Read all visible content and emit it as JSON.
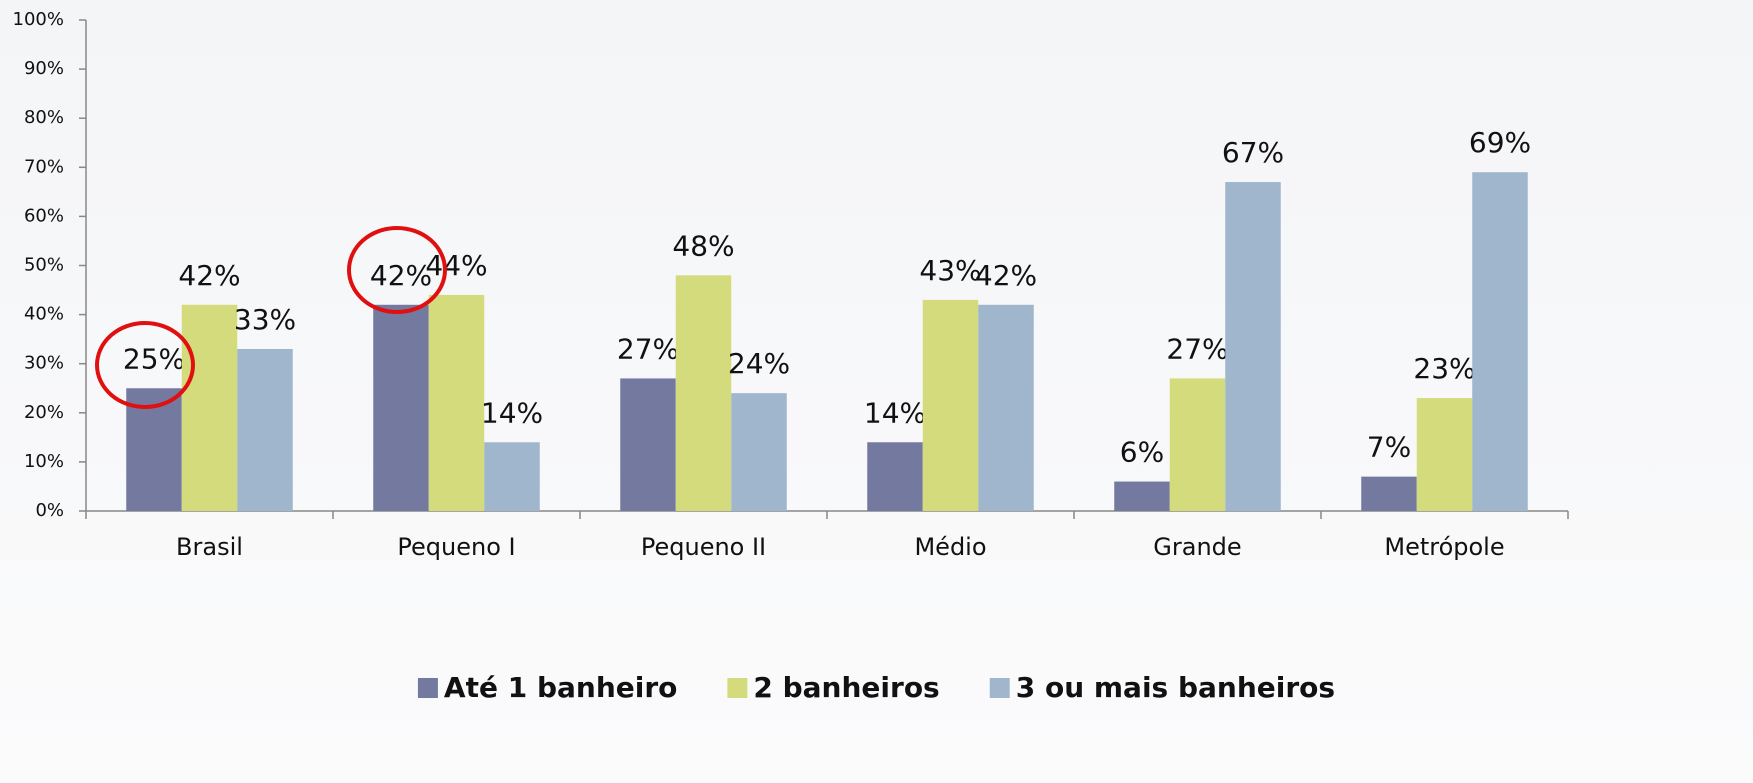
{
  "chart_data": {
    "type": "bar",
    "categories": [
      "Brasil",
      "Pequeno I",
      "Pequeno II",
      "Médio",
      "Grande",
      "Metrópole"
    ],
    "series": [
      {
        "name": "Até 1 banheiro",
        "color": "#7479a0",
        "values": [
          25,
          42,
          27,
          14,
          6,
          7
        ],
        "value_labels": [
          "25%",
          "42%",
          "27%",
          "14%",
          "6%",
          "7%"
        ]
      },
      {
        "name": "2 banheiros",
        "color": "#d4db7c",
        "values": [
          42,
          44,
          48,
          43,
          27,
          23
        ],
        "value_labels": [
          "42%",
          "44%",
          "48%",
          "43%",
          "27%",
          "23%"
        ]
      },
      {
        "name": "3 ou mais banheiros",
        "color": "#a0b6cc",
        "values": [
          33,
          14,
          24,
          42,
          67,
          69
        ],
        "value_labels": [
          "33%",
          "14%",
          "24%",
          "42%",
          "67%",
          "69%"
        ]
      }
    ],
    "ylim": [
      0,
      100
    ],
    "yticks": [
      {
        "value": 0,
        "label": "0%"
      },
      {
        "value": 10,
        "label": "10%"
      },
      {
        "value": 20,
        "label": "20%"
      },
      {
        "value": 30,
        "label": "30%"
      },
      {
        "value": 40,
        "label": "40%"
      },
      {
        "value": 50,
        "label": "50%"
      },
      {
        "value": 60,
        "label": "60%"
      },
      {
        "value": 70,
        "label": "70%"
      },
      {
        "value": 80,
        "label": "80%"
      },
      {
        "value": 90,
        "label": "90%"
      },
      {
        "value": 100,
        "label": "100%"
      }
    ],
    "legend": "bottom"
  }
}
